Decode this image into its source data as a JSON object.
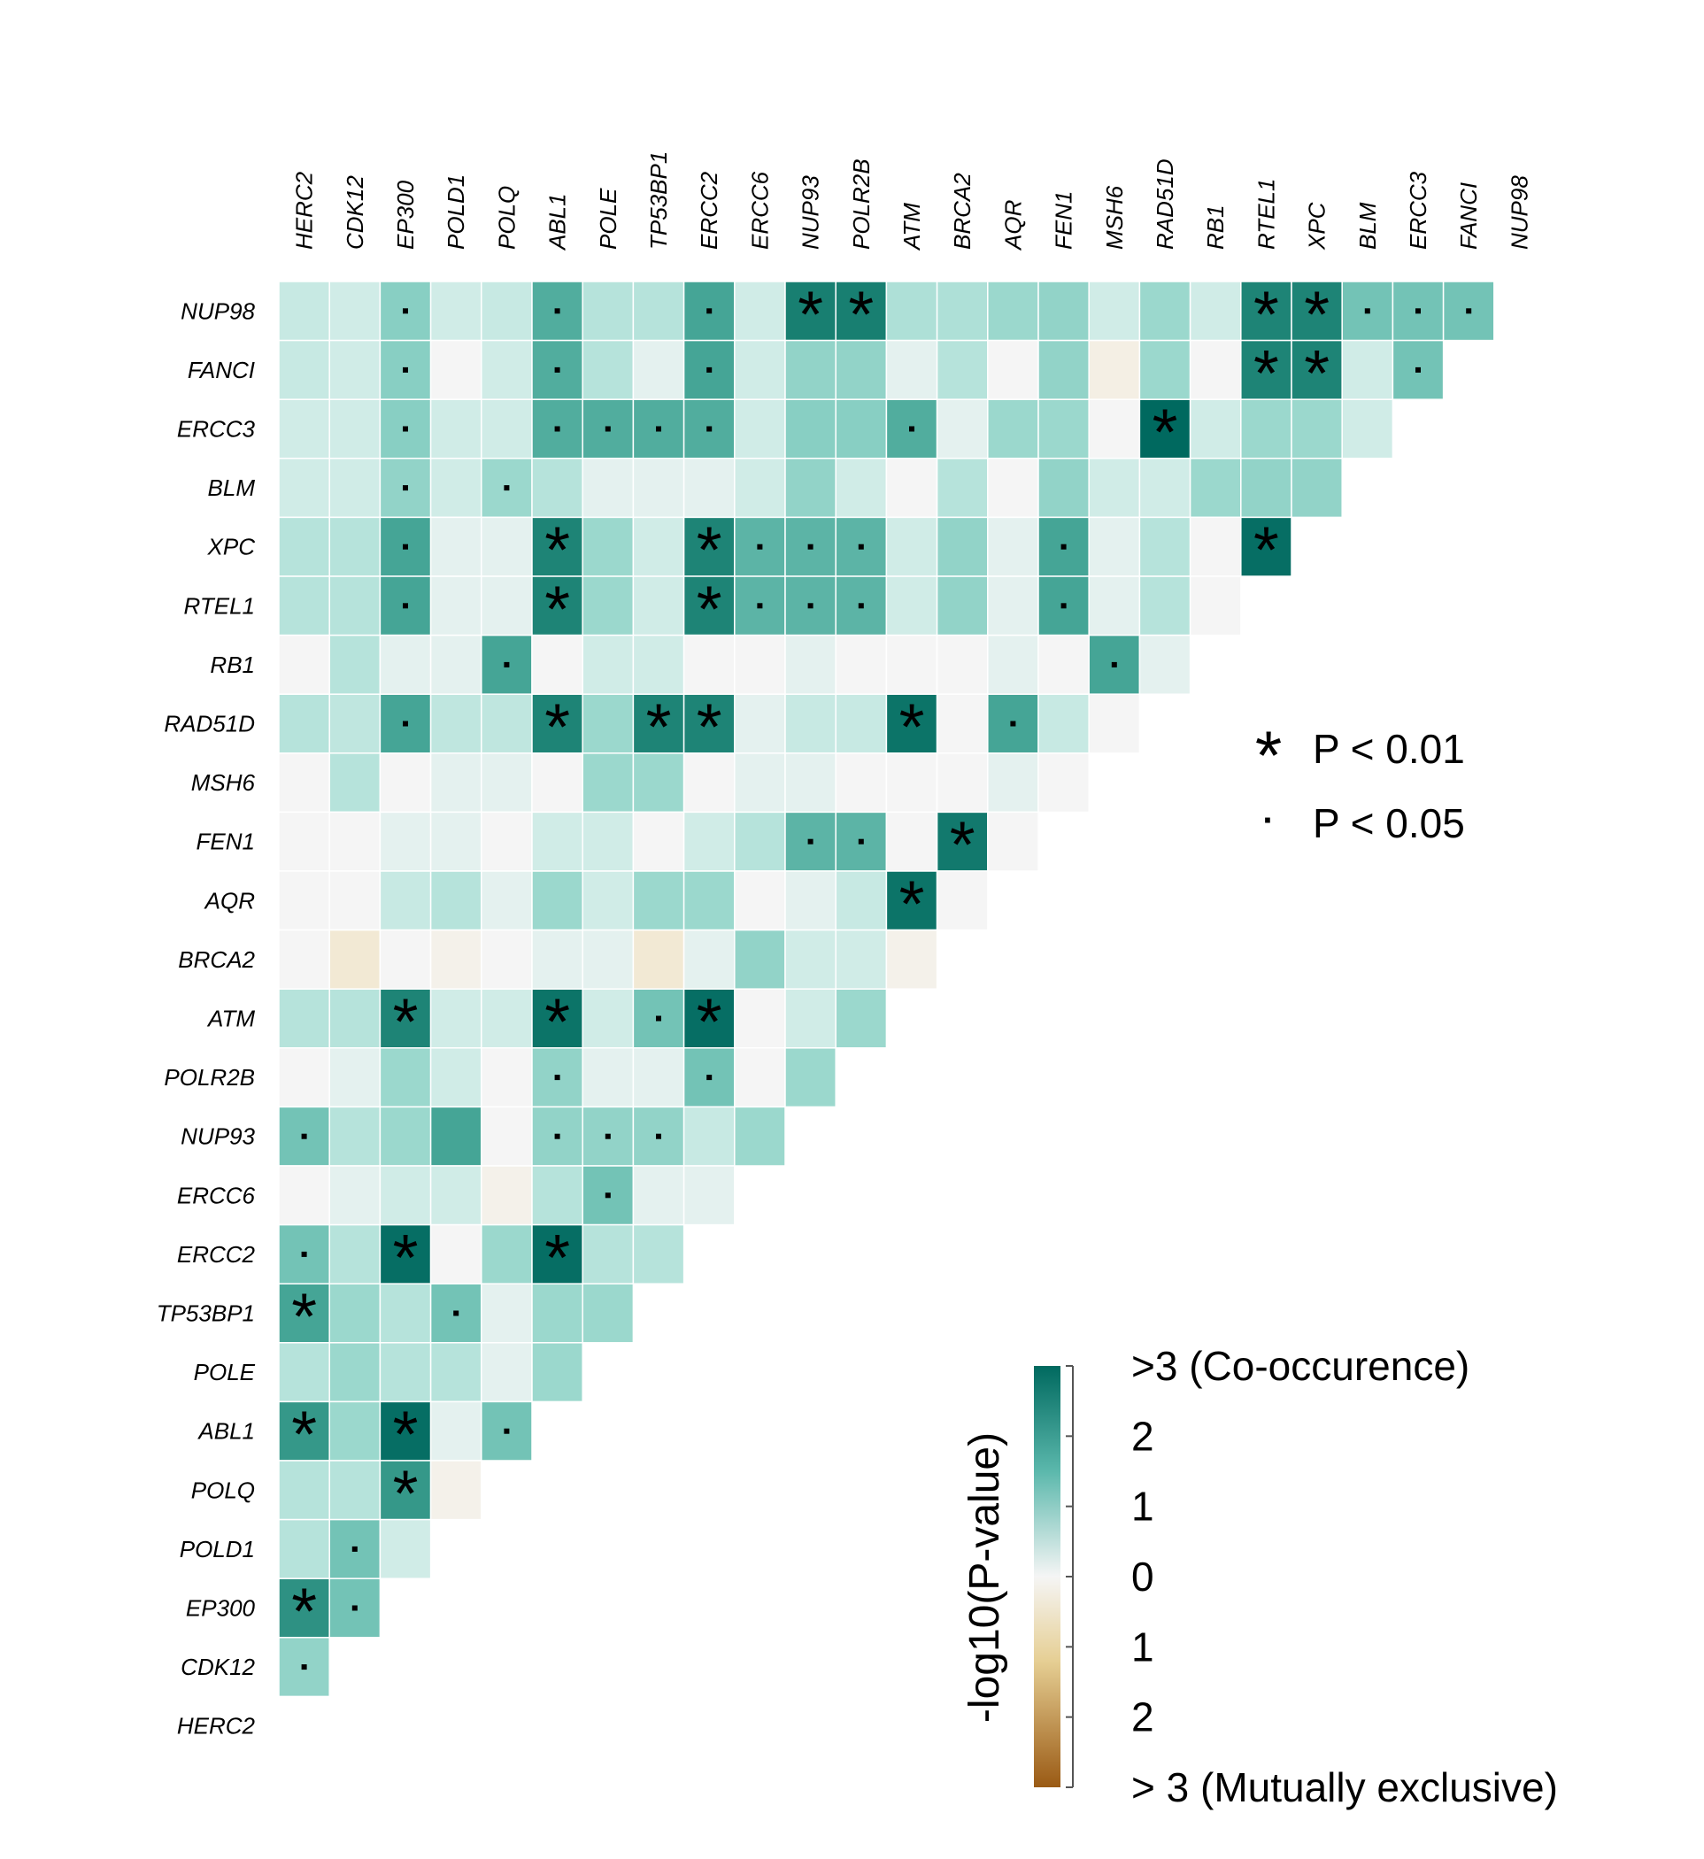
{
  "chart_data": {
    "type": "heatmap",
    "title": "",
    "genes": [
      "HERC2",
      "CDK12",
      "EP300",
      "POLD1",
      "POLQ",
      "ABL1",
      "POLE",
      "TP53BP1",
      "ERCC2",
      "ERCC6",
      "NUP93",
      "POLR2B",
      "ATM",
      "BRCA2",
      "AQR",
      "FEN1",
      "MSH6",
      "RAD51D",
      "RB1",
      "RTEL1",
      "XPC",
      "BLM",
      "ERCC3",
      "FANCI",
      "NUP98"
    ],
    "matrix_note": "values[r] = -log10(P) signed (+ co-occurrence, - mutual exclusivity) for row gene (rows listed top to bottom: NUP98 ... HERC2) against column genes in order; clipped at +/-3",
    "rows": [
      {
        "gene": "NUP98",
        "values": [
          0.7,
          0.6,
          1.4,
          0.6,
          0.7,
          1.9,
          0.9,
          0.9,
          2.0,
          0.6,
          2.6,
          2.6,
          1.0,
          1.0,
          1.2,
          1.3,
          0.6,
          1.2,
          0.6,
          2.5,
          2.5,
          1.6,
          1.6,
          1.6
        ],
        "sig": [
          "",
          "",
          "dot",
          "",
          "",
          "dot",
          "",
          "",
          "dot",
          "",
          "star",
          "star",
          "",
          "",
          "",
          "",
          "",
          "",
          "",
          "star",
          "star",
          "dot",
          "dot",
          "dot"
        ]
      },
      {
        "gene": "FANCI",
        "values": [
          0.7,
          0.6,
          1.4,
          0.0,
          0.6,
          1.9,
          0.9,
          0.3,
          2.0,
          0.6,
          1.3,
          1.3,
          0.3,
          0.9,
          0.0,
          1.3,
          -0.3,
          1.2,
          0.0,
          2.5,
          2.5,
          0.6,
          1.6
        ],
        "sig": [
          "",
          "",
          "dot",
          "",
          "",
          "dot",
          "",
          "",
          "dot",
          "",
          "",
          "",
          "",
          "",
          "",
          "",
          "",
          "",
          "",
          "star",
          "star",
          "",
          "dot"
        ]
      },
      {
        "gene": "ERCC3",
        "values": [
          0.6,
          0.6,
          1.4,
          0.6,
          0.6,
          1.9,
          1.9,
          1.9,
          1.9,
          0.6,
          1.4,
          1.4,
          1.9,
          0.3,
          1.2,
          1.2,
          0.0,
          3.0,
          0.6,
          1.2,
          1.2,
          0.6
        ],
        "sig": [
          "",
          "",
          "dot",
          "",
          "",
          "dot",
          "dot",
          "dot",
          "dot",
          "",
          "",
          "",
          "dot",
          "",
          "",
          "",
          "",
          "star",
          "",
          "",
          "",
          ""
        ]
      },
      {
        "gene": "BLM",
        "values": [
          0.6,
          0.6,
          1.3,
          0.6,
          1.2,
          0.9,
          0.3,
          0.3,
          0.3,
          0.6,
          1.3,
          0.6,
          0.0,
          0.9,
          0.0,
          1.3,
          0.6,
          0.6,
          1.2,
          1.3,
          1.3
        ],
        "sig": [
          "",
          "",
          "dot",
          "",
          "dot",
          "",
          "",
          "",
          "",
          "",
          "",
          "",
          "",
          "",
          "",
          "",
          "",
          "",
          "",
          "",
          ""
        ]
      },
      {
        "gene": "XPC",
        "values": [
          0.9,
          0.9,
          2.0,
          0.3,
          0.3,
          2.5,
          1.2,
          0.6,
          2.5,
          1.8,
          1.8,
          1.8,
          0.6,
          1.3,
          0.3,
          2.0,
          0.3,
          0.9,
          0.0,
          2.9
        ],
        "sig": [
          "",
          "",
          "dot",
          "",
          "",
          "star",
          "",
          "",
          "star",
          "dot",
          "dot",
          "dot",
          "",
          "",
          "",
          "dot",
          "",
          "",
          "",
          "star"
        ]
      },
      {
        "gene": "RTEL1",
        "values": [
          0.9,
          0.9,
          2.0,
          0.3,
          0.3,
          2.5,
          1.2,
          0.6,
          2.5,
          1.8,
          1.8,
          1.8,
          0.6,
          1.3,
          0.3,
          2.0,
          0.3,
          0.9,
          0.0
        ],
        "sig": [
          "",
          "",
          "dot",
          "",
          "",
          "star",
          "",
          "",
          "star",
          "dot",
          "dot",
          "dot",
          "",
          "",
          "",
          "dot",
          "",
          "",
          ""
        ]
      },
      {
        "gene": "RB1",
        "values": [
          0.0,
          0.9,
          0.3,
          0.3,
          2.0,
          0.0,
          0.6,
          0.6,
          0.0,
          0.0,
          0.3,
          0.0,
          0.0,
          0.0,
          0.3,
          0.0,
          2.0,
          0.3
        ],
        "sig": [
          "",
          "",
          "",
          "",
          "dot",
          "",
          "",
          "",
          "",
          "",
          "",
          "",
          "",
          "",
          "",
          "",
          "dot",
          ""
        ]
      },
      {
        "gene": "RAD51D",
        "values": [
          0.9,
          0.8,
          2.0,
          0.8,
          0.8,
          2.5,
          1.2,
          2.5,
          2.5,
          0.3,
          0.7,
          0.7,
          2.8,
          0.0,
          2.0,
          0.7,
          0.0
        ],
        "sig": [
          "",
          "",
          "dot",
          "",
          "",
          "star",
          "",
          "star",
          "star",
          "",
          "",
          "",
          "star",
          "",
          "dot",
          "",
          ""
        ]
      },
      {
        "gene": "MSH6",
        "values": [
          0.0,
          0.9,
          0.0,
          0.3,
          0.3,
          0.0,
          1.2,
          1.2,
          0.0,
          0.3,
          0.3,
          0.0,
          0.0,
          0.0,
          0.3,
          0.0
        ],
        "sig": [
          "",
          "",
          "",
          "",
          "",
          "",
          "",
          "",
          "",
          "",
          "",
          "",
          "",
          "",
          "",
          ""
        ]
      },
      {
        "gene": "FEN1",
        "values": [
          0.0,
          0.0,
          0.3,
          0.3,
          0.0,
          0.6,
          0.6,
          0.0,
          0.6,
          0.9,
          1.8,
          1.8,
          0.0,
          2.7,
          0.0
        ],
        "sig": [
          "",
          "",
          "",
          "",
          "",
          "",
          "",
          "",
          "",
          "",
          "dot",
          "dot",
          "",
          "star",
          ""
        ]
      },
      {
        "gene": "AQR",
        "values": [
          0.0,
          0.0,
          0.7,
          0.9,
          0.3,
          1.2,
          0.6,
          1.2,
          1.2,
          0.0,
          0.3,
          0.7,
          2.8,
          0.0
        ],
        "sig": [
          "",
          "",
          "",
          "",
          "",
          "",
          "",
          "",
          "",
          "",
          "",
          "",
          "star",
          ""
        ]
      },
      {
        "gene": "BRCA2",
        "values": [
          0.0,
          -0.5,
          0.0,
          -0.2,
          0.0,
          0.3,
          0.3,
          -0.5,
          0.3,
          1.3,
          0.6,
          0.6,
          -0.2
        ],
        "sig": [
          "",
          "",
          "",
          "",
          "",
          "",
          "",
          "",
          "",
          "",
          "",
          "",
          ""
        ]
      },
      {
        "gene": "ATM",
        "values": [
          0.9,
          0.9,
          2.5,
          0.6,
          0.6,
          2.8,
          0.6,
          1.6,
          2.9,
          0.0,
          0.6,
          1.2
        ],
        "sig": [
          "",
          "",
          "star",
          "",
          "",
          "star",
          "",
          "dot",
          "star",
          "",
          "",
          ""
        ]
      },
      {
        "gene": "POLR2B",
        "values": [
          0.0,
          0.3,
          1.2,
          0.6,
          0.0,
          1.3,
          0.3,
          0.3,
          1.6,
          0.0,
          1.2
        ],
        "sig": [
          "",
          "",
          "",
          "",
          "",
          "dot",
          "",
          "",
          "dot",
          "",
          ""
        ]
      },
      {
        "gene": "NUP93",
        "values": [
          1.6,
          0.9,
          1.2,
          2.0,
          0.0,
          1.3,
          1.3,
          1.3,
          0.7,
          1.2
        ],
        "sig": [
          "dot",
          "",
          "",
          "",
          "",
          "dot",
          "dot",
          "dot",
          "",
          ""
        ]
      },
      {
        "gene": "ERCC6",
        "values": [
          0.0,
          0.3,
          0.6,
          0.6,
          -0.2,
          0.9,
          1.6,
          0.3,
          0.3
        ],
        "sig": [
          "",
          "",
          "",
          "",
          "",
          "",
          "dot",
          "",
          ""
        ]
      },
      {
        "gene": "ERCC2",
        "values": [
          1.6,
          0.9,
          2.9,
          0.0,
          1.2,
          2.9,
          0.9,
          0.9
        ],
        "sig": [
          "dot",
          "",
          "star",
          "",
          "",
          "star",
          "",
          ""
        ]
      },
      {
        "gene": "TP53BP1",
        "values": [
          2.0,
          1.2,
          0.9,
          1.6,
          0.3,
          1.2,
          1.2
        ],
        "sig": [
          "star",
          "",
          "",
          "dot",
          "",
          "",
          ""
        ]
      },
      {
        "gene": "POLE",
        "values": [
          0.9,
          1.2,
          0.9,
          0.9,
          0.3,
          1.2
        ],
        "sig": [
          "",
          "",
          "",
          "",
          "",
          ""
        ]
      },
      {
        "gene": "ABL1",
        "values": [
          2.2,
          1.2,
          2.9,
          0.3,
          1.6
        ],
        "sig": [
          "star",
          "",
          "star",
          "",
          "dot"
        ]
      },
      {
        "gene": "POLQ",
        "values": [
          0.9,
          0.9,
          2.2,
          -0.2
        ],
        "sig": [
          "",
          "",
          "star",
          ""
        ]
      },
      {
        "gene": "POLD1",
        "values": [
          0.9,
          1.6,
          0.6
        ],
        "sig": [
          "",
          "dot",
          ""
        ]
      },
      {
        "gene": "EP300",
        "values": [
          2.3,
          1.6
        ],
        "sig": [
          "star",
          "dot"
        ]
      },
      {
        "gene": "CDK12",
        "values": [
          1.3
        ],
        "sig": [
          "dot"
        ]
      },
      {
        "gene": "HERC2",
        "values": [],
        "sig": []
      }
    ],
    "significance_legend": [
      {
        "symbol": "*",
        "label": "P < 0.01"
      },
      {
        "symbol": "·",
        "label": "P < 0.05"
      }
    ],
    "colorbar": {
      "title": "-log10(P-value)",
      "range": [
        -3,
        3
      ],
      "tick_labels": [
        ">3 (Co-occurence)",
        "2",
        "1",
        "0",
        "1",
        "2",
        "> 3 (Mutually exclusive)"
      ],
      "colors": {
        "positive": "#00695f",
        "neutral": "#f5f5f5",
        "negative": "#9a5a14"
      }
    }
  }
}
